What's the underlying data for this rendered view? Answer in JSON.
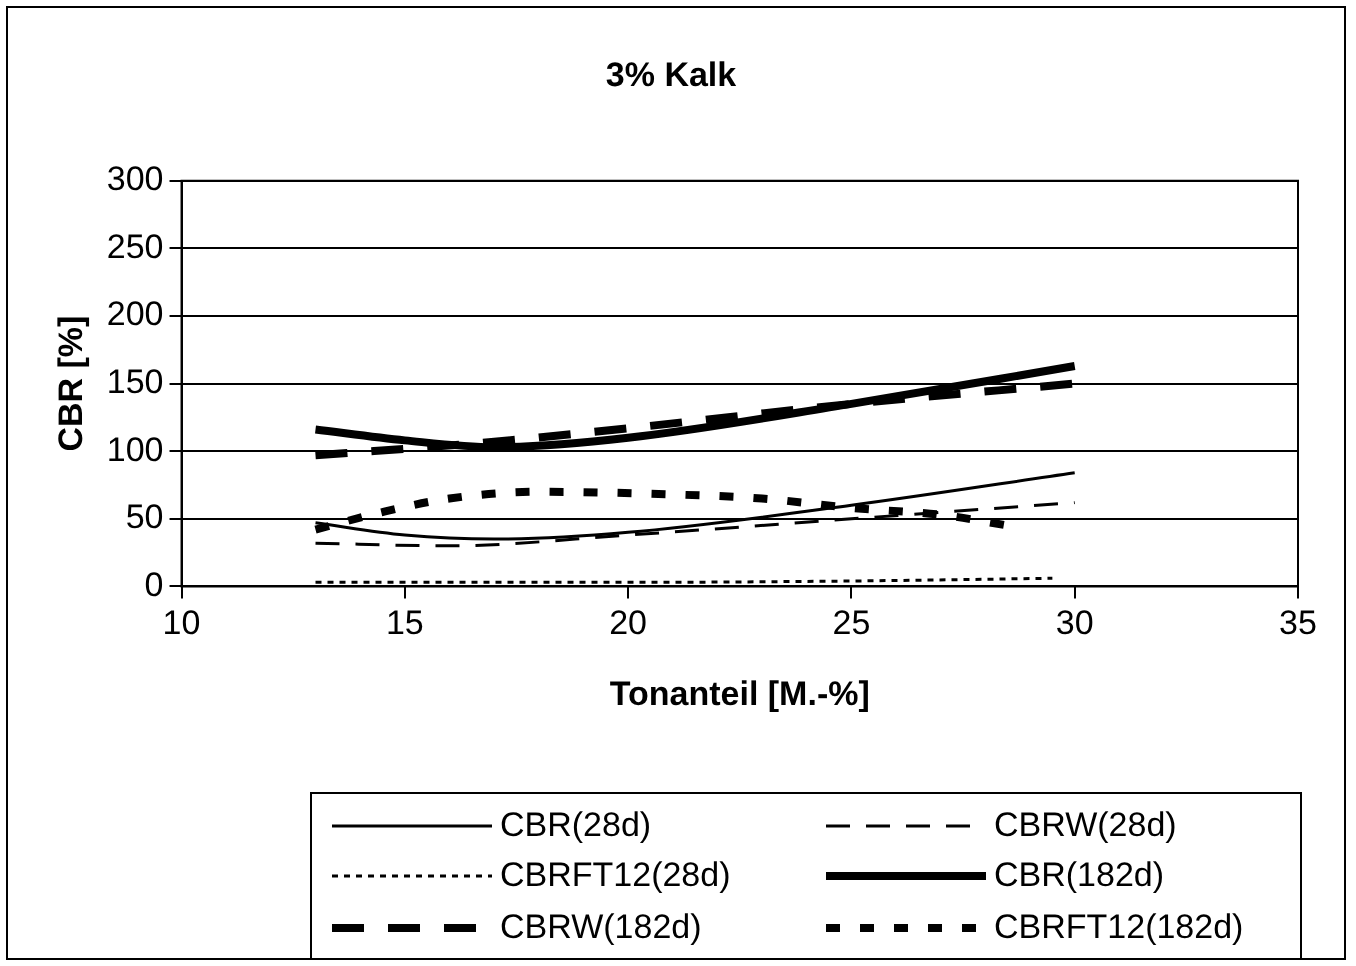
{
  "chart_data": {
    "type": "line",
    "title": "3% Kalk",
    "xlabel": "Tonanteil [M.-%]",
    "ylabel": "CBR [%]",
    "xlim": [
      10,
      35
    ],
    "xticks": [
      10,
      15,
      20,
      25,
      30,
      35
    ],
    "ylim": [
      0,
      300
    ],
    "yticks": [
      0,
      50,
      100,
      150,
      200,
      250,
      300
    ],
    "grid": "y",
    "legend": "bottom",
    "marker": "none",
    "series": [
      {
        "name": "CBR(28d)",
        "color": "#000000",
        "line_style": "solid",
        "x": [
          13,
          15,
          17,
          20,
          25,
          30
        ],
        "values": [
          47,
          38,
          35,
          40,
          60,
          84
        ]
      },
      {
        "name": "CBRW(28d)",
        "color": "#000000",
        "line_style": "dashed",
        "x": [
          13,
          16,
          20,
          25,
          30
        ],
        "values": [
          32,
          30,
          38,
          50,
          62
        ]
      },
      {
        "name": "CBRFT12(28d)",
        "color": "#000000",
        "line_style": "dotted",
        "x": [
          13,
          20,
          25,
          29.5
        ],
        "values": [
          3,
          3,
          4,
          6
        ]
      },
      {
        "name": "CBR(182d)",
        "color": "#000000",
        "line_style": "solid",
        "x": [
          13,
          15,
          17,
          20,
          25,
          30
        ],
        "values": [
          116,
          108,
          103,
          110,
          135,
          163
        ]
      },
      {
        "name": "CBRW(182d)",
        "color": "#000000",
        "line_style": "dashed",
        "x": [
          13,
          17,
          20,
          25,
          30
        ],
        "values": [
          97,
          107,
          117,
          135,
          150
        ]
      },
      {
        "name": "CBRFT12(182d)",
        "color": "#000000",
        "line_style": "dotted",
        "x": [
          13,
          14.5,
          16,
          18,
          21,
          23,
          25,
          27,
          28.5
        ],
        "values": [
          42,
          55,
          65,
          70,
          68,
          65,
          58,
          53,
          45
        ]
      }
    ]
  }
}
